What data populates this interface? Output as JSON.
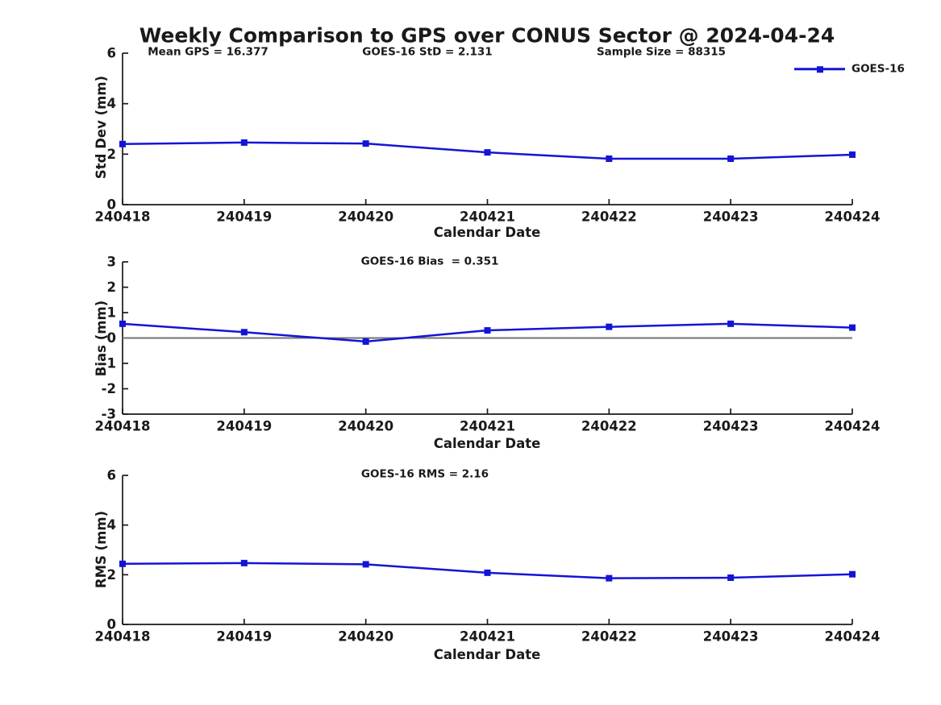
{
  "title": "Weekly Comparison to GPS over CONUS Sector @ 2024-04-24",
  "legend": {
    "label": "GOES-16",
    "marker": "square"
  },
  "colors": {
    "line": "#1414d6",
    "marker": "#1414d6",
    "zero_line": "#737373",
    "axis": "#1a1a1a",
    "text": "#1a1a1a",
    "background": "#ffffff"
  },
  "chart_data": [
    {
      "type": "line",
      "ylabel": "Std Dev (mm)",
      "xlabel": "Calendar Date",
      "categories": [
        "240418",
        "240419",
        "240420",
        "240421",
        "240422",
        "240423",
        "240424"
      ],
      "series": [
        {
          "name": "GOES-16",
          "values": [
            2.4,
            2.46,
            2.42,
            2.07,
            1.82,
            1.82,
            1.98
          ]
        }
      ],
      "ylim": [
        0,
        6
      ],
      "yticks": [
        0,
        2,
        4,
        6
      ],
      "grid": false,
      "zero_line": false,
      "legend_position": "top-right-outside",
      "annotations": [
        "Mean GPS = 16.377",
        "GOES-16 StD = 2.131",
        "Sample Size = 88315"
      ]
    },
    {
      "type": "line",
      "ylabel": "Bias (mm)",
      "xlabel": "Calendar Date",
      "categories": [
        "240418",
        "240419",
        "240420",
        "240421",
        "240422",
        "240423",
        "240424"
      ],
      "series": [
        {
          "name": "GOES-16",
          "values": [
            0.56,
            0.23,
            -0.14,
            0.3,
            0.44,
            0.56,
            0.41
          ]
        }
      ],
      "ylim": [
        -3,
        3
      ],
      "yticks": [
        -3,
        -2,
        -1,
        0,
        1,
        2,
        3
      ],
      "grid": false,
      "zero_line": true,
      "annotations": [
        "GOES-16 Bias  = 0.351"
      ]
    },
    {
      "type": "line",
      "ylabel": "RMS (mm)",
      "xlabel": "Calendar Date",
      "categories": [
        "240418",
        "240419",
        "240420",
        "240421",
        "240422",
        "240423",
        "240424"
      ],
      "series": [
        {
          "name": "GOES-16",
          "values": [
            2.44,
            2.47,
            2.42,
            2.08,
            1.86,
            1.88,
            2.02
          ]
        }
      ],
      "ylim": [
        0,
        6
      ],
      "yticks": [
        0,
        2,
        4,
        6
      ],
      "grid": false,
      "zero_line": false,
      "annotations": [
        "GOES-16 RMS = 2.16"
      ]
    }
  ]
}
